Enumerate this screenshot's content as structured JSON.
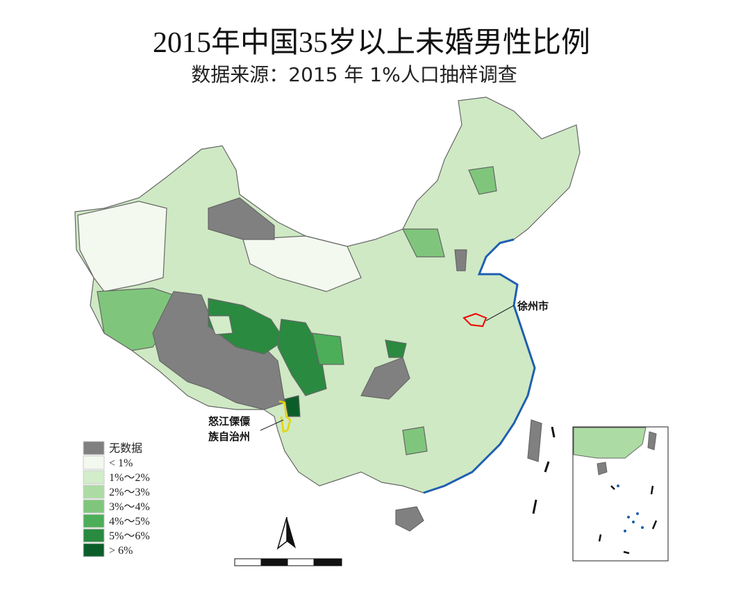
{
  "title": "2015年中国35岁以上未婚男性比例",
  "subtitle": "数据来源：2015 年 1%人口抽样调查",
  "legend": [
    {
      "label": "无数据",
      "color": "#808080"
    },
    {
      "label": "< 1%",
      "color": "#f3f9ef"
    },
    {
      "label": "1%～2%",
      "color": "#d3ecca"
    },
    {
      "label": "2%～3%",
      "color": "#acdca3"
    },
    {
      "label": "3%～4%",
      "color": "#7fc67c"
    },
    {
      "label": "4%～5%",
      "color": "#4cae58"
    },
    {
      "label": "5%～6%",
      "color": "#2a8a40"
    },
    {
      "label": "> 6%",
      "color": "#0b5e2a"
    }
  ],
  "annotations": [
    {
      "lines": [
        "徐州市"
      ]
    },
    {
      "lines": [
        "怒江傈僳",
        "族自治州"
      ]
    }
  ]
}
